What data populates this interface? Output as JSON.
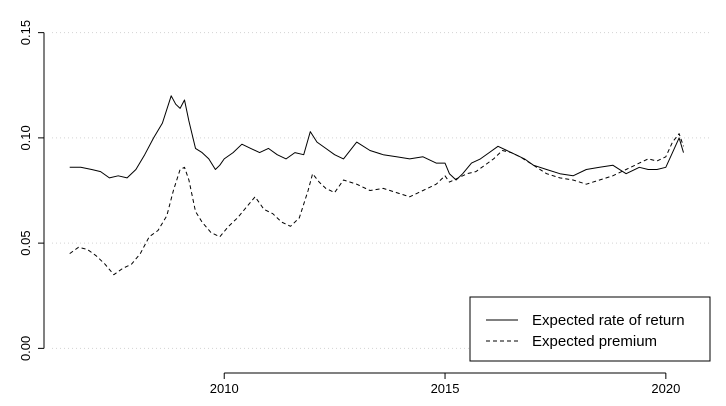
{
  "chart_data": {
    "type": "line",
    "title": "",
    "xlabel": "",
    "ylabel": "",
    "xlim": [
      2006.1,
      2021.0
    ],
    "ylim": [
      -0.006,
      0.156
    ],
    "x_ticks": [
      2010,
      2015,
      2020
    ],
    "y_ticks": [
      0.0,
      0.05,
      0.1,
      0.15
    ],
    "x_tick_labels": [
      "2010",
      "2015",
      "2020"
    ],
    "y_tick_labels": [
      "0.00",
      "0.05",
      "0.10",
      "0.15"
    ],
    "grid": "horizontal dotted at y ticks",
    "legend_position": "bottom-right",
    "colors": {
      "line": "#000000",
      "grid": "#d3d3d3",
      "axes": "#000000"
    },
    "series": [
      {
        "name": "Expected rate of return",
        "line_style": "solid",
        "x": [
          2006.5,
          2006.75,
          2007.0,
          2007.2,
          2007.4,
          2007.6,
          2007.8,
          2008.0,
          2008.2,
          2008.4,
          2008.6,
          2008.8,
          2008.9,
          2009.0,
          2009.1,
          2009.2,
          2009.35,
          2009.5,
          2009.65,
          2009.8,
          2009.9,
          2010.0,
          2010.2,
          2010.4,
          2010.6,
          2010.8,
          2011.0,
          2011.2,
          2011.4,
          2011.6,
          2011.8,
          2011.95,
          2012.1,
          2012.3,
          2012.5,
          2012.7,
          2013.0,
          2013.3,
          2013.6,
          2013.9,
          2014.2,
          2014.5,
          2014.8,
          2015.0,
          2015.1,
          2015.25,
          2015.4,
          2015.6,
          2015.8,
          2016.0,
          2016.2,
          2016.4,
          2016.6,
          2016.8,
          2017.0,
          2017.3,
          2017.6,
          2017.9,
          2018.2,
          2018.5,
          2018.8,
          2019.1,
          2019.4,
          2019.6,
          2019.8,
          2020.0,
          2020.15,
          2020.3,
          2020.4
        ],
        "values": [
          0.086,
          0.086,
          0.085,
          0.084,
          0.081,
          0.082,
          0.081,
          0.085,
          0.092,
          0.1,
          0.107,
          0.12,
          0.116,
          0.114,
          0.118,
          0.108,
          0.095,
          0.093,
          0.09,
          0.085,
          0.087,
          0.09,
          0.093,
          0.097,
          0.095,
          0.093,
          0.095,
          0.092,
          0.09,
          0.093,
          0.092,
          0.103,
          0.098,
          0.095,
          0.092,
          0.09,
          0.098,
          0.094,
          0.092,
          0.091,
          0.09,
          0.091,
          0.088,
          0.088,
          0.083,
          0.08,
          0.083,
          0.088,
          0.09,
          0.093,
          0.096,
          0.094,
          0.092,
          0.09,
          0.087,
          0.085,
          0.083,
          0.082,
          0.085,
          0.086,
          0.087,
          0.083,
          0.086,
          0.085,
          0.085,
          0.086,
          0.093,
          0.1,
          0.093
        ]
      },
      {
        "name": "Expected premium",
        "line_style": "dashed",
        "x": [
          2006.5,
          2006.7,
          2006.9,
          2007.1,
          2007.3,
          2007.5,
          2007.7,
          2007.9,
          2008.1,
          2008.3,
          2008.5,
          2008.7,
          2008.85,
          2009.0,
          2009.1,
          2009.2,
          2009.35,
          2009.5,
          2009.7,
          2009.9,
          2010.1,
          2010.3,
          2010.5,
          2010.7,
          2010.9,
          2011.1,
          2011.3,
          2011.5,
          2011.7,
          2011.9,
          2012.0,
          2012.15,
          2012.3,
          2012.5,
          2012.7,
          2013.0,
          2013.3,
          2013.6,
          2013.9,
          2014.2,
          2014.5,
          2014.8,
          2015.0,
          2015.1,
          2015.3,
          2015.5,
          2015.7,
          2015.9,
          2016.1,
          2016.3,
          2016.5,
          2016.7,
          2017.0,
          2017.3,
          2017.6,
          2017.9,
          2018.2,
          2018.5,
          2018.8,
          2019.1,
          2019.4,
          2019.6,
          2019.8,
          2020.0,
          2020.15,
          2020.3,
          2020.4
        ],
        "values": [
          0.045,
          0.048,
          0.047,
          0.044,
          0.04,
          0.035,
          0.038,
          0.04,
          0.045,
          0.053,
          0.056,
          0.063,
          0.075,
          0.085,
          0.086,
          0.08,
          0.065,
          0.06,
          0.055,
          0.053,
          0.058,
          0.062,
          0.067,
          0.072,
          0.066,
          0.064,
          0.06,
          0.058,
          0.062,
          0.075,
          0.083,
          0.079,
          0.076,
          0.074,
          0.08,
          0.078,
          0.075,
          0.076,
          0.074,
          0.072,
          0.075,
          0.078,
          0.082,
          0.079,
          0.081,
          0.083,
          0.084,
          0.087,
          0.09,
          0.094,
          0.093,
          0.091,
          0.087,
          0.083,
          0.081,
          0.08,
          0.078,
          0.08,
          0.082,
          0.085,
          0.088,
          0.09,
          0.089,
          0.091,
          0.098,
          0.102,
          0.096
        ]
      }
    ]
  }
}
